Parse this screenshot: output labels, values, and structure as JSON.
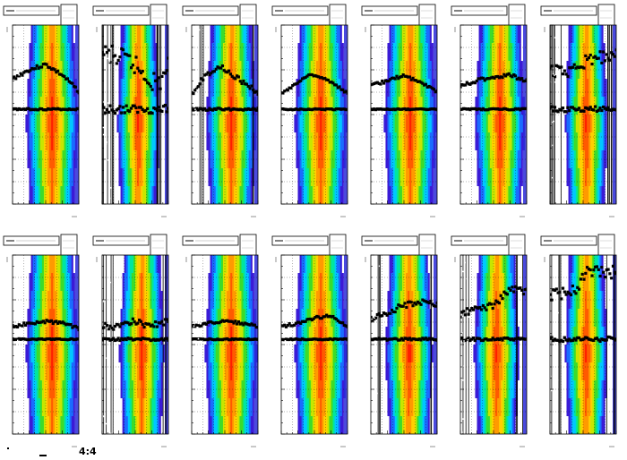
{
  "footer": {
    "label": "4:4"
  },
  "layout": {
    "rows": 2,
    "cols": 7
  },
  "colors": {
    "contour": [
      "#ffffff",
      "#3a1bd6",
      "#1a6cff",
      "#00c8ff",
      "#00e6a0",
      "#3cdc2a",
      "#c8e600",
      "#ffd000",
      "#ff9a00",
      "#ff5a00",
      "#ff1e00"
    ],
    "markers": "#000000",
    "grid": "#000000"
  },
  "chart_data": [
    {
      "type": "heatmap",
      "row": 0,
      "col": 0,
      "center": 0.6,
      "width": 0.42,
      "profile": [
        [
          0,
          0.3
        ],
        [
          0.25,
          0.25
        ],
        [
          0.5,
          0.22
        ],
        [
          0.75,
          0.28
        ],
        [
          1,
          0.37
        ]
      ],
      "baseline": 0.47,
      "noise": 0.0,
      "spread": 0.05
    },
    {
      "type": "heatmap",
      "row": 0,
      "col": 1,
      "center": 0.55,
      "width": 0.34,
      "profile": [
        [
          0,
          0.15
        ],
        [
          0.2,
          0.18
        ],
        [
          0.45,
          0.21
        ],
        [
          0.65,
          0.28
        ],
        [
          0.85,
          0.33
        ],
        [
          1,
          0.22
        ]
      ],
      "baseline": 0.47,
      "noise": 0.9,
      "spread": 0.3
    },
    {
      "type": "heatmap",
      "row": 0,
      "col": 2,
      "center": 0.6,
      "width": 0.4,
      "profile": [
        [
          0,
          0.38
        ],
        [
          0.2,
          0.28
        ],
        [
          0.4,
          0.23
        ],
        [
          0.6,
          0.27
        ],
        [
          0.8,
          0.33
        ],
        [
          1,
          0.38
        ]
      ],
      "baseline": 0.47,
      "noise": 0.35,
      "spread": 0.08
    },
    {
      "type": "heatmap",
      "row": 0,
      "col": 3,
      "center": 0.6,
      "width": 0.42,
      "profile": [
        [
          0,
          0.38
        ],
        [
          0.25,
          0.32
        ],
        [
          0.45,
          0.27
        ],
        [
          0.7,
          0.31
        ],
        [
          1,
          0.38
        ]
      ],
      "baseline": 0.47,
      "noise": 0.05,
      "spread": 0.04
    },
    {
      "type": "heatmap",
      "row": 0,
      "col": 4,
      "center": 0.6,
      "width": 0.42,
      "profile": [
        [
          0,
          0.34
        ],
        [
          0.25,
          0.31
        ],
        [
          0.5,
          0.28
        ],
        [
          0.75,
          0.32
        ],
        [
          1,
          0.37
        ]
      ],
      "baseline": 0.47,
      "noise": 0.05,
      "spread": 0.04
    },
    {
      "type": "heatmap",
      "row": 0,
      "col": 5,
      "center": 0.6,
      "width": 0.4,
      "profile": [
        [
          0,
          0.34
        ],
        [
          0.25,
          0.31
        ],
        [
          0.5,
          0.29
        ],
        [
          0.75,
          0.28
        ],
        [
          1,
          0.31
        ]
      ],
      "baseline": 0.47,
      "noise": 0.15,
      "spread": 0.05
    },
    {
      "type": "heatmap",
      "row": 0,
      "col": 6,
      "center": 0.55,
      "width": 0.34,
      "profile": [
        [
          0,
          0.24
        ],
        [
          0.15,
          0.27
        ],
        [
          0.4,
          0.23
        ],
        [
          0.6,
          0.2
        ],
        [
          0.85,
          0.17
        ],
        [
          1,
          0.14
        ]
      ],
      "baseline": 0.47,
      "noise": 0.7,
      "spread": 0.2
    },
    {
      "type": "heatmap",
      "row": 1,
      "col": 0,
      "center": 0.6,
      "width": 0.42,
      "profile": [
        [
          0,
          0.4
        ],
        [
          0.25,
          0.38
        ],
        [
          0.5,
          0.37
        ],
        [
          0.75,
          0.38
        ],
        [
          1,
          0.41
        ]
      ],
      "baseline": 0.47,
      "noise": 0.0,
      "spread": 0.04
    },
    {
      "type": "heatmap",
      "row": 1,
      "col": 1,
      "center": 0.6,
      "width": 0.36,
      "profile": [
        [
          0,
          0.4
        ],
        [
          0.25,
          0.4
        ],
        [
          0.5,
          0.37
        ],
        [
          0.75,
          0.4
        ],
        [
          1,
          0.36
        ]
      ],
      "baseline": 0.47,
      "noise": 0.5,
      "spread": 0.1
    },
    {
      "type": "heatmap",
      "row": 1,
      "col": 2,
      "center": 0.6,
      "width": 0.42,
      "profile": [
        [
          0,
          0.4
        ],
        [
          0.25,
          0.38
        ],
        [
          0.5,
          0.37
        ],
        [
          0.75,
          0.38
        ],
        [
          1,
          0.4
        ]
      ],
      "baseline": 0.47,
      "noise": 0.0,
      "spread": 0.04
    },
    {
      "type": "heatmap",
      "row": 1,
      "col": 3,
      "center": 0.6,
      "width": 0.42,
      "profile": [
        [
          0,
          0.4
        ],
        [
          0.25,
          0.38
        ],
        [
          0.5,
          0.35
        ],
        [
          0.75,
          0.34
        ],
        [
          1,
          0.4
        ]
      ],
      "baseline": 0.47,
      "noise": 0.05,
      "spread": 0.04
    },
    {
      "type": "heatmap",
      "row": 1,
      "col": 4,
      "center": 0.58,
      "width": 0.38,
      "profile": [
        [
          0,
          0.36
        ],
        [
          0.25,
          0.32
        ],
        [
          0.5,
          0.28
        ],
        [
          0.75,
          0.26
        ],
        [
          1,
          0.28
        ]
      ],
      "baseline": 0.47,
      "noise": 0.35,
      "spread": 0.08
    },
    {
      "type": "heatmap",
      "row": 1,
      "col": 5,
      "center": 0.55,
      "width": 0.36,
      "profile": [
        [
          0,
          0.33
        ],
        [
          0.25,
          0.3
        ],
        [
          0.5,
          0.28
        ],
        [
          0.75,
          0.19
        ],
        [
          1,
          0.2
        ]
      ],
      "baseline": 0.47,
      "noise": 0.45,
      "spread": 0.1
    },
    {
      "type": "heatmap",
      "row": 1,
      "col": 6,
      "center": 0.55,
      "width": 0.34,
      "profile": [
        [
          0,
          0.22
        ],
        [
          0.2,
          0.22
        ],
        [
          0.4,
          0.18
        ],
        [
          0.6,
          0.08
        ],
        [
          0.85,
          0.1
        ],
        [
          1,
          0.09
        ]
      ],
      "baseline": 0.47,
      "noise": 0.65,
      "spread": 0.18
    }
  ]
}
